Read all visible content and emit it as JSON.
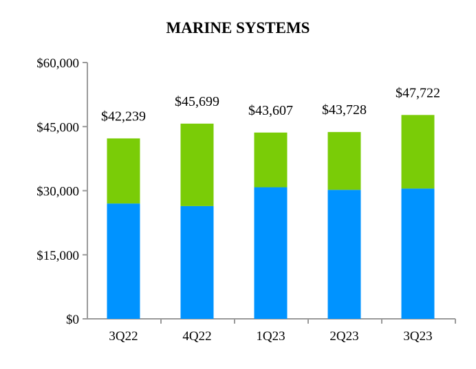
{
  "chart_data": {
    "type": "bar",
    "stacked": true,
    "title": "MARINE SYSTEMS",
    "xlabel": "",
    "ylabel": "",
    "categories": [
      "3Q22",
      "4Q22",
      "1Q23",
      "2Q23",
      "3Q23"
    ],
    "series": [
      {
        "values": [
          27000,
          26400,
          30800,
          30200,
          30500
        ],
        "color": "#0093FF"
      },
      {
        "values": [
          15239,
          19299,
          12807,
          13528,
          17222
        ],
        "color": "#7ACC07"
      }
    ],
    "totals_labels": [
      "$42,239",
      "$45,699",
      "$43,607",
      "$43,728",
      "$47,722"
    ],
    "totals": [
      42239,
      45699,
      43607,
      43728,
      47722
    ],
    "ylim": [
      0,
      60000
    ],
    "yticks": [
      0,
      15000,
      30000,
      45000,
      60000
    ],
    "ytick_labels": [
      "$0",
      "$15,000",
      "$30,000",
      "$45,000",
      "$60,000"
    ],
    "grid": false,
    "legend": "none"
  }
}
